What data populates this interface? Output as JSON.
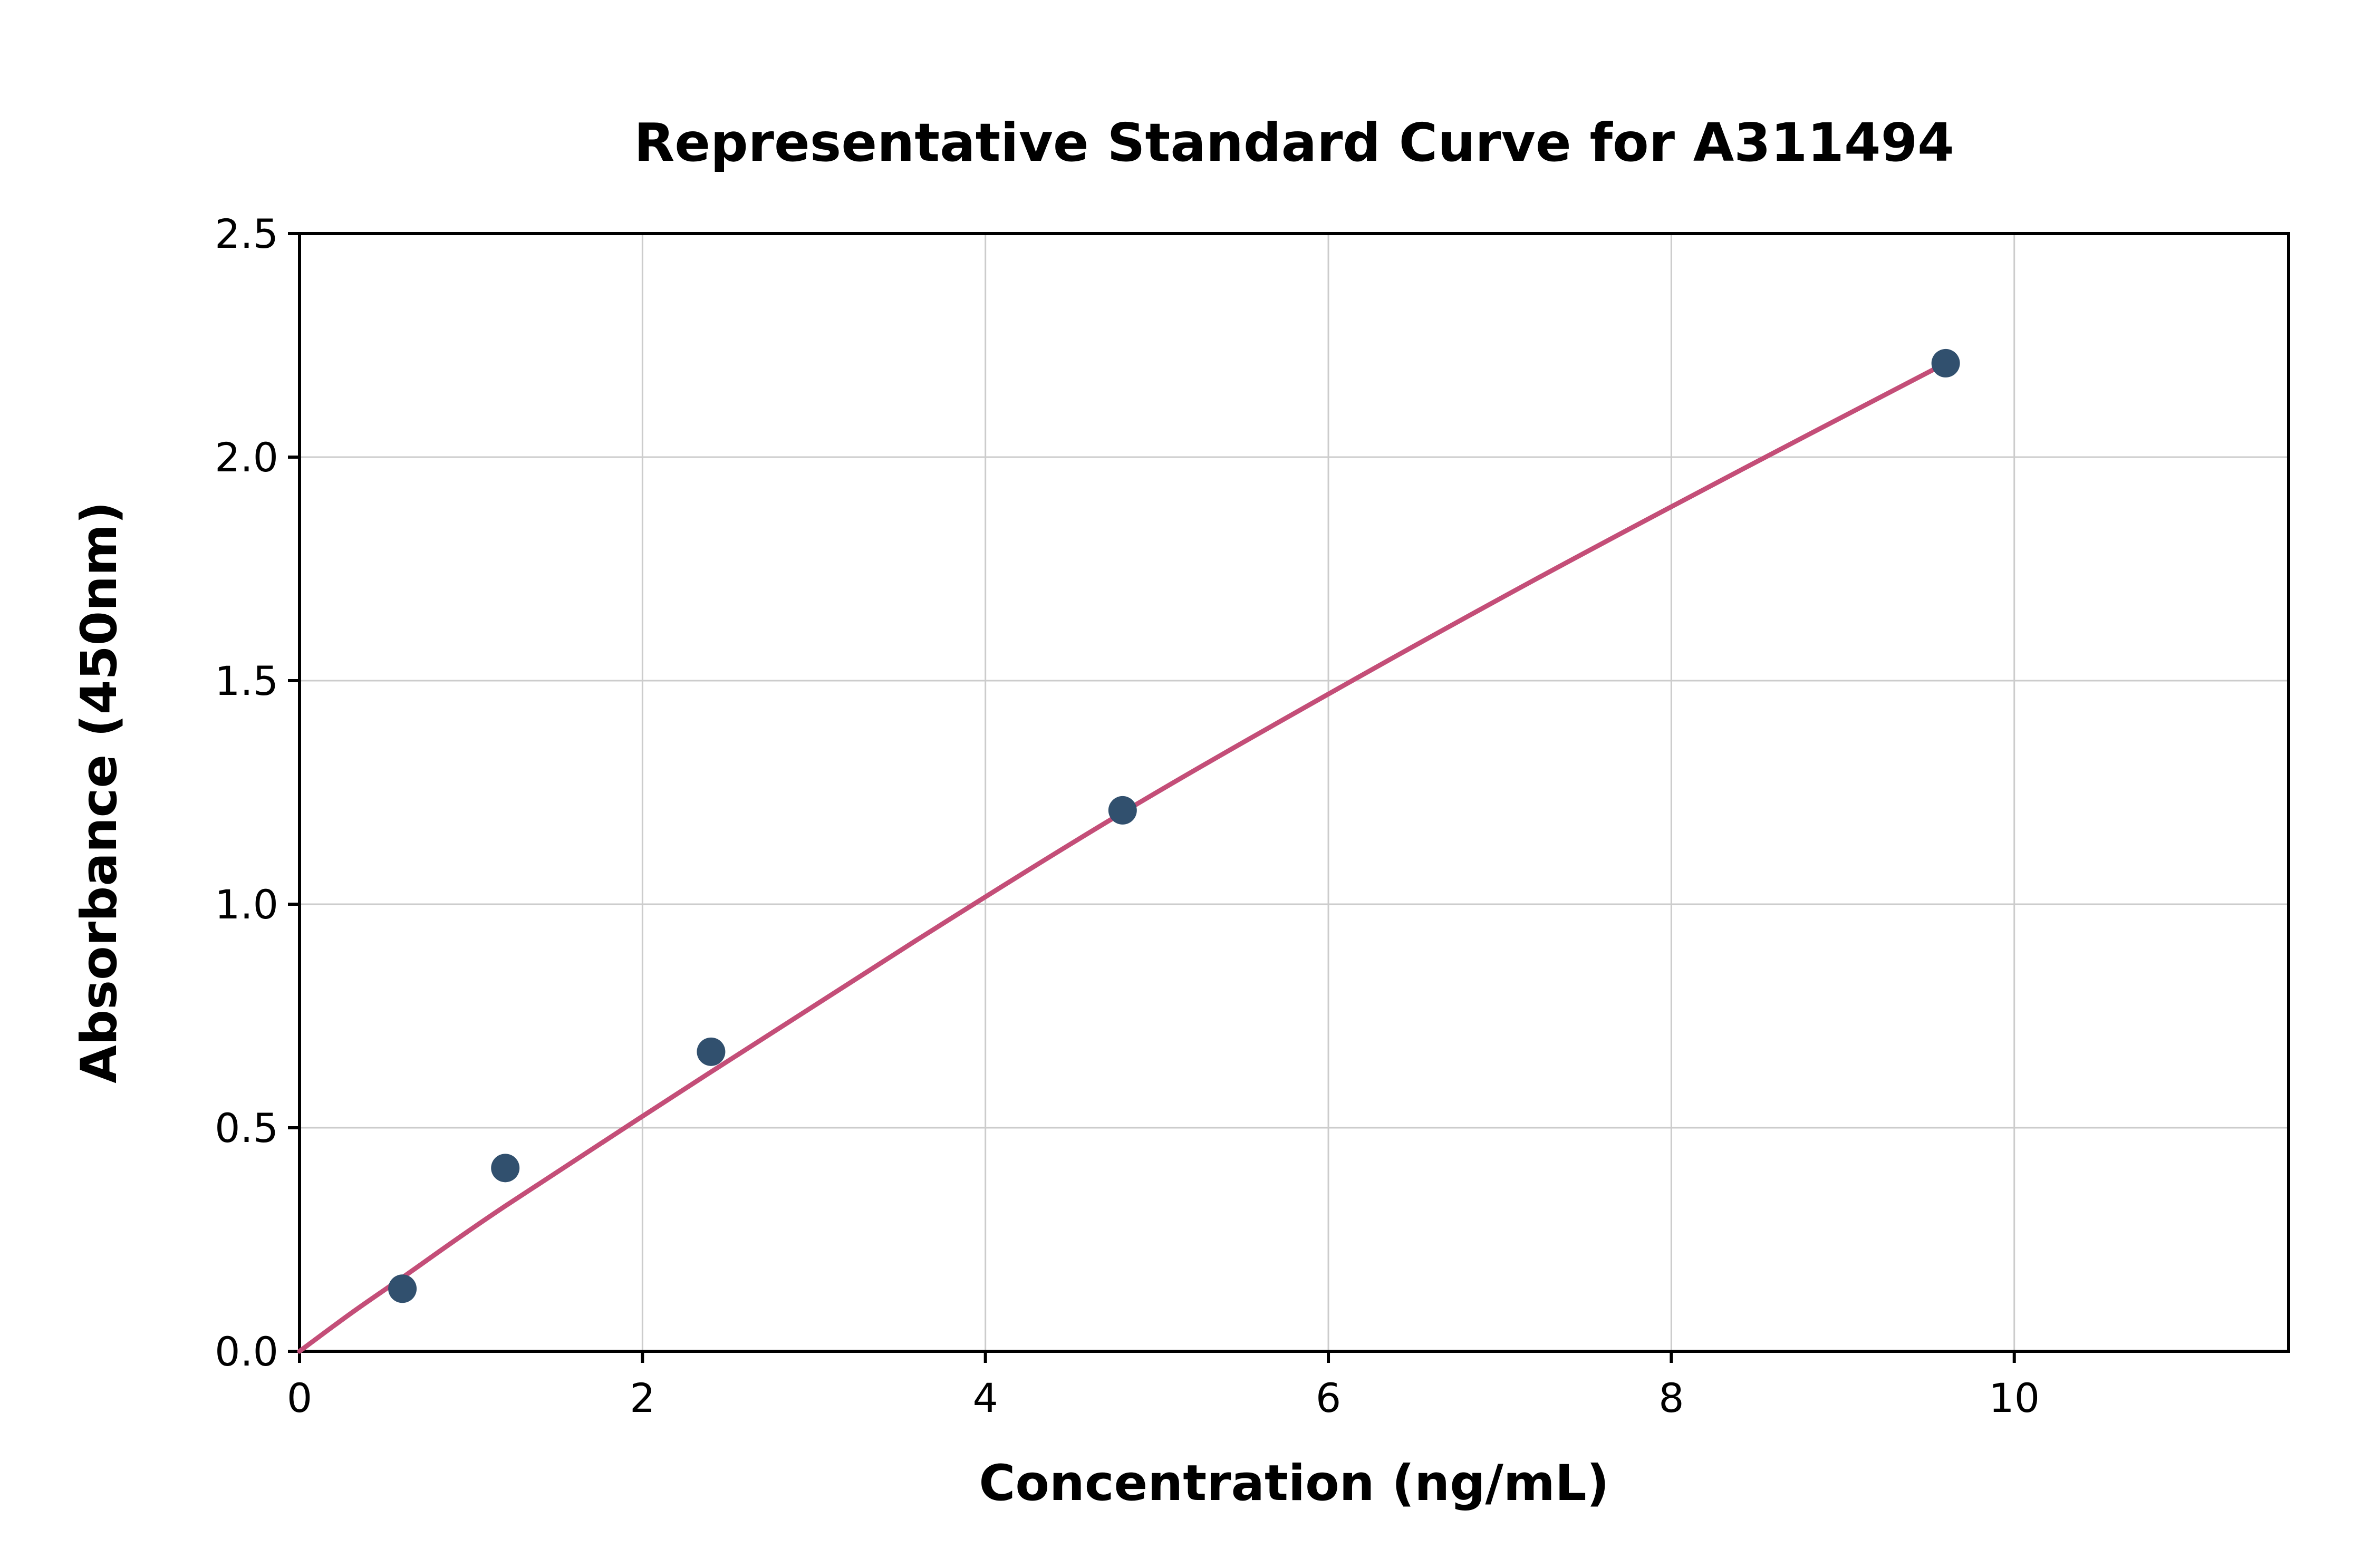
{
  "chart_data": {
    "type": "scatter",
    "title": "Representative Standard Curve for A311494",
    "xlabel": "Concentration (ng/mL)",
    "ylabel": "Absorbance (450nm)",
    "xlim": [
      0,
      11.6
    ],
    "ylim": [
      0,
      2.5
    ],
    "x_ticks": [
      0,
      2,
      4,
      6,
      8,
      10
    ],
    "x_tick_labels": [
      "0",
      "2",
      "4",
      "6",
      "8",
      "10"
    ],
    "y_ticks": [
      0,
      0.5,
      1.0,
      1.5,
      2.0,
      2.5
    ],
    "y_tick_labels": [
      "0.0",
      "0.5",
      "1.0",
      "1.5",
      "2.0",
      "2.5"
    ],
    "grid": true,
    "legend": "none",
    "points": {
      "x": [
        0.6,
        1.2,
        2.4,
        4.8,
        9.6
      ],
      "y": [
        0.14,
        0.41,
        0.67,
        1.21,
        2.21
      ]
    },
    "trend_curve": {
      "x": [
        0,
        0.3,
        0.6,
        1.2,
        2.4,
        3.6,
        4.8,
        6.0,
        7.2,
        8.4,
        9.6
      ],
      "y": [
        0,
        0.085,
        0.165,
        0.325,
        0.625,
        0.92,
        1.205,
        1.47,
        1.725,
        1.97,
        2.21
      ]
    },
    "colors": {
      "point": "#31506e",
      "line": "#c44e78",
      "grid": "#cccccc",
      "axis": "#000000",
      "background": "#ffffff",
      "text": "#000000"
    }
  }
}
